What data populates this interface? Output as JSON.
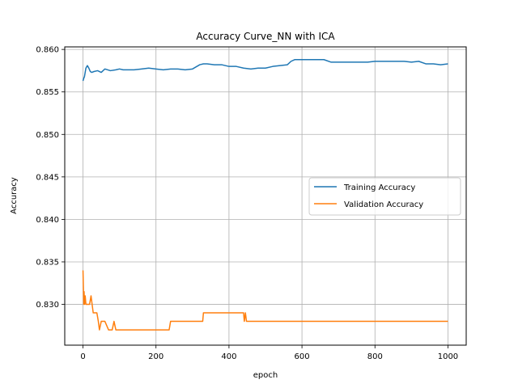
{
  "chart_data": {
    "type": "line",
    "title": "Accuracy Curve_NN with ICA",
    "xlabel": "epoch",
    "ylabel": "Accuracy",
    "xlim": [
      -50,
      1050
    ],
    "ylim": [
      0.8252,
      0.8603
    ],
    "xticks": [
      0,
      200,
      400,
      600,
      800,
      1000
    ],
    "yticks": [
      0.83,
      0.835,
      0.84,
      0.845,
      0.85,
      0.855,
      0.86
    ],
    "xtick_labels": [
      "0",
      "200",
      "400",
      "600",
      "800",
      "1000"
    ],
    "ytick_labels": [
      "0.830",
      "0.835",
      "0.840",
      "0.845",
      "0.850",
      "0.855",
      "0.860"
    ],
    "grid": true,
    "legend_position": "center-right",
    "series": [
      {
        "name": "Training Accuracy",
        "color": "#1f77b4",
        "x": [
          0,
          2,
          4,
          6,
          8,
          12,
          16,
          20,
          24,
          30,
          40,
          50,
          60,
          75,
          90,
          100,
          110,
          125,
          140,
          160,
          180,
          200,
          220,
          240,
          260,
          280,
          300,
          320,
          330,
          340,
          360,
          380,
          400,
          420,
          440,
          460,
          480,
          500,
          520,
          540,
          560,
          570,
          580,
          600,
          620,
          640,
          660,
          680,
          700,
          720,
          740,
          760,
          780,
          800,
          820,
          840,
          860,
          880,
          900,
          920,
          940,
          960,
          980,
          1000
        ],
        "y": [
          0.8563,
          0.8566,
          0.8568,
          0.8573,
          0.8578,
          0.8581,
          0.8578,
          0.8574,
          0.8573,
          0.8574,
          0.8575,
          0.8573,
          0.8577,
          0.8575,
          0.8576,
          0.8577,
          0.8576,
          0.8576,
          0.8576,
          0.8577,
          0.8578,
          0.8577,
          0.8576,
          0.8577,
          0.8577,
          0.8576,
          0.8577,
          0.8582,
          0.8583,
          0.8583,
          0.8582,
          0.8582,
          0.858,
          0.858,
          0.8578,
          0.8577,
          0.8578,
          0.8578,
          0.858,
          0.8581,
          0.8582,
          0.8586,
          0.8588,
          0.8588,
          0.8588,
          0.8588,
          0.8588,
          0.8585,
          0.8585,
          0.8585,
          0.8585,
          0.8585,
          0.8585,
          0.8586,
          0.8586,
          0.8586,
          0.8586,
          0.8586,
          0.8585,
          0.8586,
          0.8583,
          0.8583,
          0.8582,
          0.8583
        ]
      },
      {
        "name": "Validation Accuracy",
        "color": "#ff7f0e",
        "x": [
          0,
          1,
          2,
          3,
          4,
          6,
          8,
          10,
          14,
          18,
          22,
          25,
          28,
          32,
          38,
          42,
          45,
          50,
          60,
          70,
          75,
          80,
          85,
          90,
          95,
          100,
          110,
          150,
          200,
          236,
          240,
          260,
          300,
          328,
          330,
          380,
          420,
          440,
          442,
          445,
          448,
          500,
          600,
          700,
          800,
          900,
          1000
        ],
        "y": [
          0.834,
          0.832,
          0.83,
          0.8315,
          0.83,
          0.831,
          0.83,
          0.83,
          0.83,
          0.83,
          0.831,
          0.83,
          0.829,
          0.829,
          0.829,
          0.828,
          0.827,
          0.828,
          0.828,
          0.827,
          0.827,
          0.827,
          0.828,
          0.827,
          0.827,
          0.827,
          0.827,
          0.827,
          0.827,
          0.827,
          0.828,
          0.828,
          0.828,
          0.828,
          0.829,
          0.829,
          0.829,
          0.829,
          0.828,
          0.829,
          0.828,
          0.828,
          0.828,
          0.828,
          0.828,
          0.828,
          0.828
        ]
      }
    ]
  }
}
